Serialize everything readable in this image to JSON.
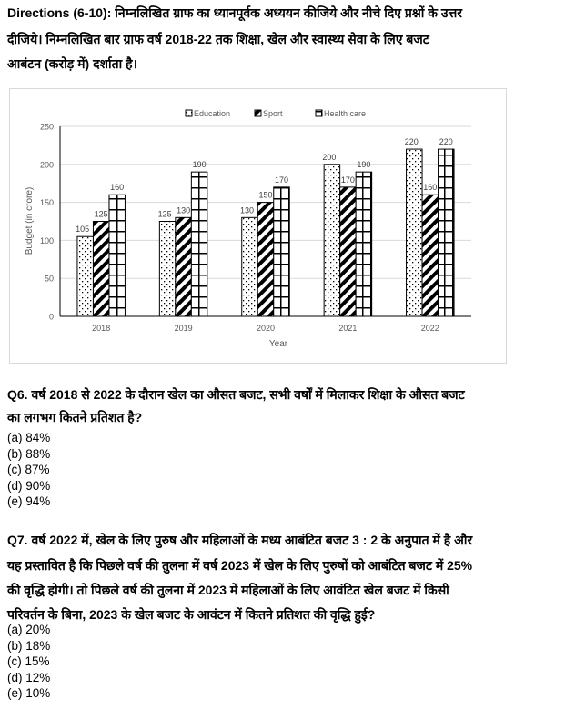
{
  "directions": {
    "lines": [
      "Directions (6-10): निम्नलिखित ग्राफ का ध्यानपूर्वक अध्ययन कीजिये और नीचे दिए प्रश्नों के उत्तर",
      "दीजिये। निम्नलिखित बार ग्राफ वर्ष 2018-22 तक शिक्षा, खेल और स्वास्थ्य सेवा के लिए बजट",
      "आबंटन (करोड़ में) दर्शाता है।"
    ]
  },
  "chart_data": {
    "type": "bar",
    "categories": [
      "2018",
      "2019",
      "2020",
      "2021",
      "2022"
    ],
    "series": [
      {
        "name": "Education",
        "values": [
          105,
          125,
          130,
          200,
          220
        ],
        "pattern": "dots"
      },
      {
        "name": "Sport",
        "values": [
          125,
          130,
          150,
          170,
          160
        ],
        "pattern": "diagonal-stripes"
      },
      {
        "name": "Health care",
        "values": [
          160,
          190,
          170,
          190,
          220
        ],
        "pattern": "grid"
      }
    ],
    "xlabel": "Year",
    "ylabel": "Budget (in crore)",
    "ylim": [
      0,
      250
    ],
    "yticks": [
      0,
      50,
      100,
      150,
      200,
      250
    ],
    "grid": true,
    "legend": "top",
    "data_labels": true
  },
  "q6": {
    "lines": [
      "Q6. वर्ष 2018 से 2022 के दौरान खेल का औसत बजट, सभी वर्षों में मिलाकर शिक्षा के औसत बजट",
      "का लगभग कितने प्रतिशत है?"
    ],
    "options": [
      "(a) 84%",
      "(b) 88%",
      "(c) 87%",
      "(d) 90%",
      "(e) 94%"
    ]
  },
  "q7": {
    "lines": [
      "Q7. वर्ष 2022 में, खेल के लिए पुरुष और महिलाओं के मध्य आबंटित बजट 3 : 2 के अनुपात में है और",
      "यह प्रस्तावित है कि पिछले वर्ष की तुलना में वर्ष 2023 में खेल के लिए पुरुषों को आबंटित बजट में 25%",
      "की वृद्धि होगी। तो पिछले वर्ष की तुलना में 2023 में महिलाओं के लिए आवंटित खेल बजट में किसी",
      "परिवर्तन के बिना, 2023 के खेल बजट के आवंटन में कितने प्रतिशत की वृद्धि हुई?"
    ],
    "options": [
      "(a) 20%",
      "(b) 18%",
      "(c) 15%",
      "(d) 12%",
      "(e) 10%"
    ]
  }
}
